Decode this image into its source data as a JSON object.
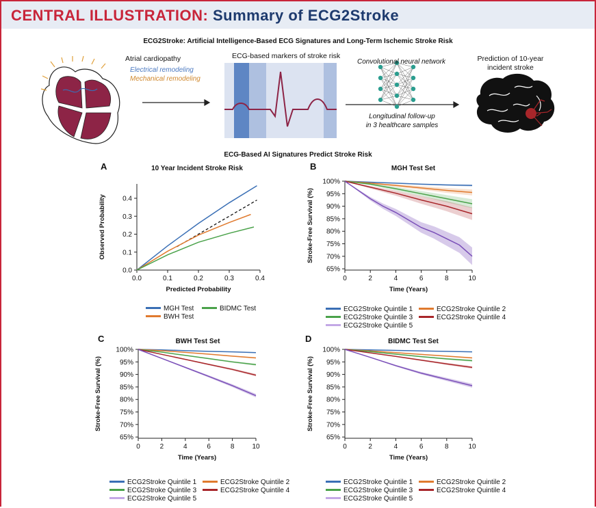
{
  "banner": {
    "title_part1": "CENTRAL ILLUSTRATION:",
    "title_part2": "Summary of ECG2Stroke"
  },
  "header": {
    "subtitle": "ECG2Stroke: Artificial Intelligence-Based ECG Signatures and Long-Term Ischemic Stroke Risk"
  },
  "illustration": {
    "heart_label": "Atrial cardiopathy",
    "electrical": "Electrical remodeling",
    "mechanical": "Mechanical remodeling",
    "ecg_label": "ECG-based markers of stroke risk",
    "cnn_label": "Convolutional neural network",
    "followup_line1": "Longitudinal follow-up",
    "followup_line2": "in 3 healthcare samples",
    "prediction_line1": "Prediction of 10-year",
    "prediction_line2": "incident stroke",
    "section_title": "ECG-Based AI Signatures Predict Stroke Risk"
  },
  "colors": {
    "banner_red": "#c8253a",
    "banner_navy": "#1d3a6e",
    "q1": "#3a6fb5",
    "q2": "#e07a2e",
    "q3": "#4aa24a",
    "q4": "#a8262a",
    "q5": "#7a4fb8",
    "mgh": "#3a6fb5",
    "bwh": "#e07a2e",
    "bidmc": "#4aa24a"
  },
  "survival_legend": [
    "ECG2Stroke Quintile 1",
    "ECG2Stroke Quintile 2",
    "ECG2Stroke Quintile 3",
    "ECG2Stroke Quintile 4",
    "ECG2Stroke Quintile 5"
  ],
  "chart_data": [
    {
      "panel": "A",
      "type": "line",
      "title": "10 Year Incident Stroke Risk",
      "xlabel": "Predicted Probability",
      "ylabel": "Observed Probability",
      "xlim": [
        0,
        0.4
      ],
      "ylim": [
        0,
        0.48
      ],
      "xticks": [
        0.0,
        0.1,
        0.2,
        0.3,
        0.4
      ],
      "xtick_labels": [
        "0.0",
        "0.1",
        "0.2",
        "0.3",
        "0.4"
      ],
      "yticks": [
        0.0,
        0.1,
        0.2,
        0.3,
        0.4
      ],
      "ytick_labels": [
        "0.0",
        "0.1",
        "0.2",
        "0.3",
        "0.4"
      ],
      "reference_line": {
        "style": "dashed",
        "x": [
          0.13,
          0.39
        ],
        "y": [
          0.13,
          0.39
        ]
      },
      "series": [
        {
          "name": "MGH Test",
          "color": "#3a6fb5",
          "x": [
            0,
            0.1,
            0.2,
            0.3,
            0.39
          ],
          "y": [
            0,
            0.135,
            0.26,
            0.375,
            0.47
          ]
        },
        {
          "name": "BWH Test",
          "color": "#e07a2e",
          "x": [
            0,
            0.1,
            0.2,
            0.3,
            0.37
          ],
          "y": [
            0,
            0.105,
            0.195,
            0.265,
            0.31
          ]
        },
        {
          "name": "BIDMC Test",
          "color": "#4aa24a",
          "x": [
            0,
            0.1,
            0.2,
            0.3,
            0.38
          ],
          "y": [
            0,
            0.085,
            0.155,
            0.205,
            0.24
          ]
        }
      ],
      "legend": [
        "MGH Test",
        "BIDMC Test",
        "BWH Test"
      ]
    },
    {
      "panel": "B",
      "type": "line",
      "title": "MGH Test Set",
      "xlabel": "Time (Years)",
      "ylabel": "Stroke-Free Survival (%)",
      "xlim": [
        0,
        10
      ],
      "ylim": [
        64.5,
        100
      ],
      "xticks": [
        0,
        2,
        4,
        6,
        8,
        10
      ],
      "xtick_labels": [
        "0",
        "2",
        "4",
        "6",
        "8",
        "10"
      ],
      "yticks": [
        65,
        70,
        75,
        80,
        85,
        90,
        95,
        100
      ],
      "ytick_labels": [
        "65%",
        "70%",
        "75%",
        "80%",
        "85%",
        "90%",
        "95%",
        "100%"
      ],
      "series": [
        {
          "name": "ECG2Stroke Quintile 1",
          "color": "#3a6fb5",
          "x": [
            0,
            2,
            4,
            6,
            8,
            10
          ],
          "y": [
            100,
            99.6,
            99.2,
            98.8,
            98.5,
            98.3
          ],
          "ci": 0.4
        },
        {
          "name": "ECG2Stroke Quintile 2",
          "color": "#e07a2e",
          "x": [
            0,
            2,
            4,
            6,
            8,
            10
          ],
          "y": [
            100,
            99.2,
            98.3,
            97.3,
            96.3,
            95.5
          ],
          "ci": 1.2
        },
        {
          "name": "ECG2Stroke Quintile 3",
          "color": "#4aa24a",
          "x": [
            0,
            2,
            4,
            6,
            8,
            10
          ],
          "y": [
            100,
            98.8,
            97.0,
            95.0,
            93.0,
            91.0
          ],
          "ci": 1.8
        },
        {
          "name": "ECG2Stroke Quintile 4",
          "color": "#a8262a",
          "x": [
            0,
            2,
            4,
            6,
            8,
            10
          ],
          "y": [
            100,
            97.6,
            95.2,
            92.5,
            90.0,
            87.0
          ],
          "ci": 2.5
        },
        {
          "name": "ECG2Stroke Quintile 5",
          "color": "#7a4fb8",
          "x": [
            0,
            1,
            2,
            3,
            4,
            5,
            6,
            7,
            8,
            9,
            10
          ],
          "y": [
            100,
            96.5,
            93,
            90,
            87.5,
            84.5,
            81.5,
            79.5,
            77,
            74.5,
            70
          ],
          "ci": 3.5
        }
      ]
    },
    {
      "panel": "C",
      "type": "line",
      "title": "BWH Test Set",
      "xlabel": "Time (Years)",
      "ylabel": "Stroke-Free Survival (%)",
      "xlim": [
        0,
        10
      ],
      "ylim": [
        64.5,
        100
      ],
      "xticks": [
        0,
        2,
        4,
        6,
        8,
        10
      ],
      "xtick_labels": [
        "0",
        "2",
        "4",
        "6",
        "8",
        "10"
      ],
      "yticks": [
        65,
        70,
        75,
        80,
        85,
        90,
        95,
        100
      ],
      "ytick_labels": [
        "65%",
        "70%",
        "75%",
        "80%",
        "85%",
        "90%",
        "95%",
        "100%"
      ],
      "series": [
        {
          "name": "ECG2Stroke Quintile 1",
          "color": "#3a6fb5",
          "x": [
            0,
            2,
            4,
            6,
            8,
            10
          ],
          "y": [
            100,
            99.8,
            99.5,
            99.2,
            99.0,
            98.7
          ],
          "ci": 0.2
        },
        {
          "name": "ECG2Stroke Quintile 2",
          "color": "#e07a2e",
          "x": [
            0,
            2,
            4,
            6,
            8,
            10
          ],
          "y": [
            100,
            99.5,
            98.8,
            98.1,
            97.3,
            96.6
          ],
          "ci": 0.3
        },
        {
          "name": "ECG2Stroke Quintile 3",
          "color": "#4aa24a",
          "x": [
            0,
            2,
            4,
            6,
            8,
            10
          ],
          "y": [
            100,
            98.9,
            97.6,
            96.3,
            95.0,
            93.9
          ],
          "ci": 0.4
        },
        {
          "name": "ECG2Stroke Quintile 4",
          "color": "#a8262a",
          "x": [
            0,
            2,
            4,
            6,
            8,
            10
          ],
          "y": [
            100,
            98.0,
            96.0,
            94.0,
            92.0,
            89.7
          ],
          "ci": 0.5
        },
        {
          "name": "ECG2Stroke Quintile 5",
          "color": "#7a4fb8",
          "x": [
            0,
            2,
            4,
            6,
            8,
            10
          ],
          "y": [
            100,
            96.4,
            92.8,
            89.2,
            85.5,
            81.5
          ],
          "ci": 0.7
        }
      ]
    },
    {
      "panel": "D",
      "type": "line",
      "title": "BIDMC Test Set",
      "xlabel": "Time (Years)",
      "ylabel": "Stroke-Free Survival (%)",
      "xlim": [
        0,
        10
      ],
      "ylim": [
        64.5,
        100
      ],
      "xticks": [
        0,
        2,
        4,
        6,
        8,
        10
      ],
      "xtick_labels": [
        "0",
        "2",
        "4",
        "6",
        "8",
        "10"
      ],
      "yticks": [
        65,
        70,
        75,
        80,
        85,
        90,
        95,
        100
      ],
      "ytick_labels": [
        "65%",
        "70%",
        "75%",
        "80%",
        "85%",
        "90%",
        "95%",
        "100%"
      ],
      "series": [
        {
          "name": "ECG2Stroke Quintile 1",
          "color": "#3a6fb5",
          "x": [
            0,
            2,
            4,
            6,
            8,
            10
          ],
          "y": [
            100,
            99.8,
            99.6,
            99.4,
            99.2,
            99.0
          ],
          "ci": 0.2
        },
        {
          "name": "ECG2Stroke Quintile 2",
          "color": "#e07a2e",
          "x": [
            0,
            2,
            4,
            6,
            8,
            10
          ],
          "y": [
            100,
            99.4,
            98.7,
            98.0,
            97.3,
            96.6
          ],
          "ci": 0.3
        },
        {
          "name": "ECG2Stroke Quintile 3",
          "color": "#4aa24a",
          "x": [
            0,
            2,
            4,
            6,
            8,
            10
          ],
          "y": [
            100,
            99.1,
            98.1,
            97.1,
            96.2,
            95.5
          ],
          "ci": 0.4
        },
        {
          "name": "ECG2Stroke Quintile 4",
          "color": "#a8262a",
          "x": [
            0,
            2,
            4,
            6,
            8,
            10
          ],
          "y": [
            100,
            98.6,
            97.2,
            95.7,
            94.2,
            92.8
          ],
          "ci": 0.5
        },
        {
          "name": "ECG2Stroke Quintile 5",
          "color": "#7a4fb8",
          "x": [
            0,
            2,
            4,
            6,
            8,
            10
          ],
          "y": [
            100,
            96.8,
            93.5,
            90.5,
            88.0,
            85.5
          ],
          "ci": 0.8
        }
      ]
    }
  ]
}
